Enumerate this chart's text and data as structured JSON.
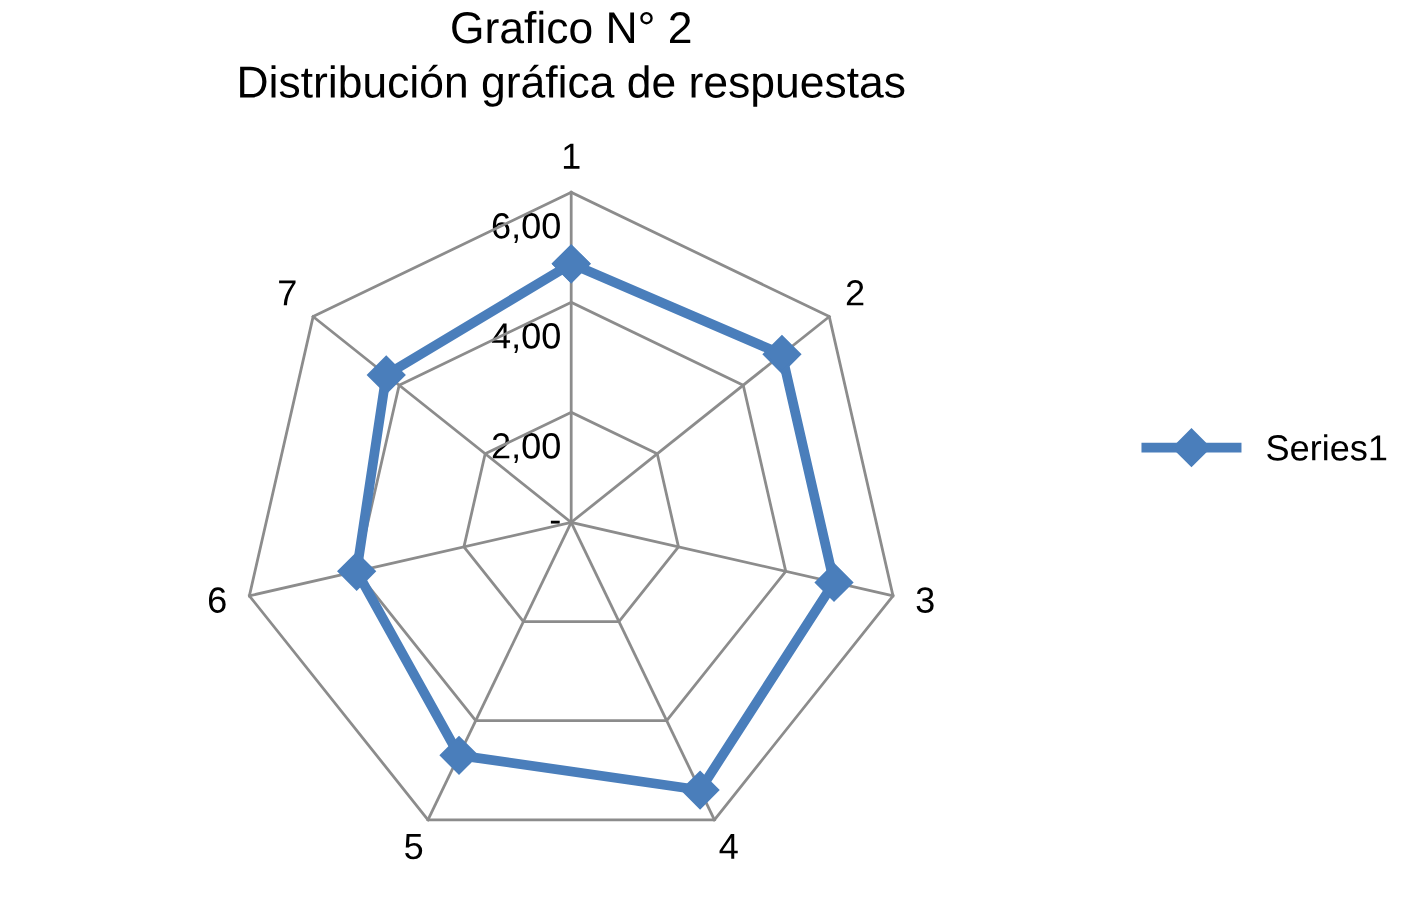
{
  "chart_data": {
    "type": "radar",
    "title": "Grafico N° 2",
    "subtitle": "Distribución gráfica de respuestas",
    "categories": [
      "1",
      "2",
      "3",
      "4",
      "5",
      "6",
      "7"
    ],
    "series": [
      {
        "name": "Series1",
        "color": "#4a7ebb",
        "values": [
          4.7,
          4.9,
          4.9,
          5.4,
          4.7,
          4.0,
          4.3
        ]
      }
    ],
    "ylim": [
      0,
      6
    ],
    "yticks": [
      {
        "value": 0,
        "label": "-"
      },
      {
        "value": 2,
        "label": "2,00"
      },
      {
        "value": 4,
        "label": "4,00"
      },
      {
        "value": 6,
        "label": "6,00"
      }
    ],
    "marker": "diamond",
    "line_style": "solid",
    "legend": "right",
    "grid": true
  }
}
